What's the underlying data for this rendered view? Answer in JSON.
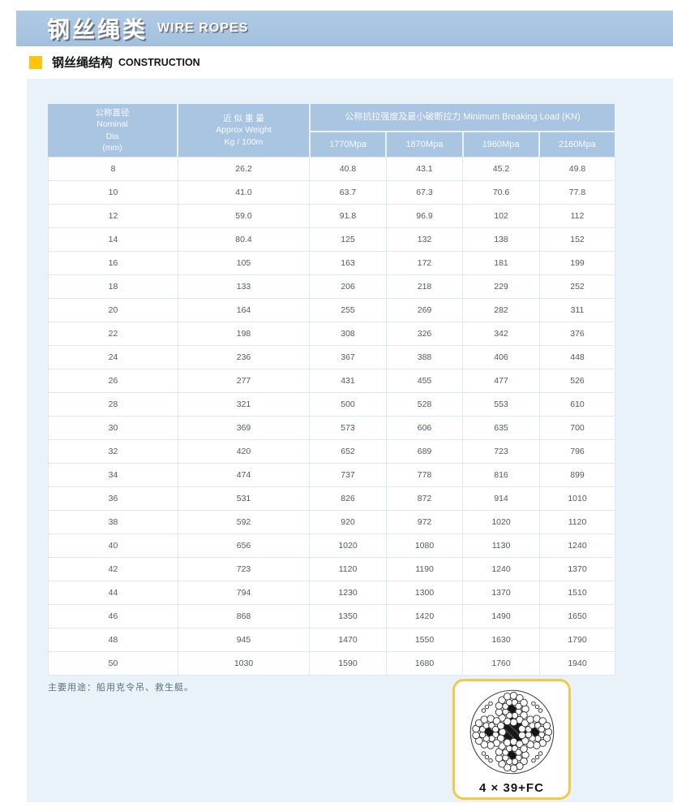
{
  "banner": {
    "title_cn": "钢丝绳类",
    "title_en": "WIRE ROPES"
  },
  "section": {
    "title_cn": "钢丝绳结构",
    "title_en": "CONSTRUCTION"
  },
  "table": {
    "header": {
      "dia_lines": [
        "公称直径",
        "Nominal",
        "Dia",
        "(mm)"
      ],
      "weight_lines": [
        "近 似 重 量",
        "Approx Weight",
        "Kg / 100m"
      ],
      "breaking_load_span": "公称抗拉强度及最小破断拉力 Minimum Breaking Load (KN)",
      "grade_columns": [
        "1770Mpa",
        "1870Mpa",
        "1960Mpa",
        "2160Mpa"
      ]
    },
    "rows": [
      {
        "dia": "8",
        "weight": "26.2",
        "loads": [
          "40.8",
          "43.1",
          "45.2",
          "49.8"
        ]
      },
      {
        "dia": "10",
        "weight": "41.0",
        "loads": [
          "63.7",
          "67.3",
          "70.6",
          "77.8"
        ]
      },
      {
        "dia": "12",
        "weight": "59.0",
        "loads": [
          "91.8",
          "96.9",
          "102",
          "112"
        ]
      },
      {
        "dia": "14",
        "weight": "80.4",
        "loads": [
          "125",
          "132",
          "138",
          "152"
        ]
      },
      {
        "dia": "16",
        "weight": "105",
        "loads": [
          "163",
          "172",
          "181",
          "199"
        ]
      },
      {
        "dia": "18",
        "weight": "133",
        "loads": [
          "206",
          "218",
          "229",
          "252"
        ]
      },
      {
        "dia": "20",
        "weight": "164",
        "loads": [
          "255",
          "269",
          "282",
          "311"
        ]
      },
      {
        "dia": "22",
        "weight": "198",
        "loads": [
          "308",
          "326",
          "342",
          "376"
        ]
      },
      {
        "dia": "24",
        "weight": "236",
        "loads": [
          "367",
          "388",
          "406",
          "448"
        ]
      },
      {
        "dia": "26",
        "weight": "277",
        "loads": [
          "431",
          "455",
          "477",
          "526"
        ]
      },
      {
        "dia": "28",
        "weight": "321",
        "loads": [
          "500",
          "528",
          "553",
          "610"
        ]
      },
      {
        "dia": "30",
        "weight": "369",
        "loads": [
          "573",
          "606",
          "635",
          "700"
        ]
      },
      {
        "dia": "32",
        "weight": "420",
        "loads": [
          "652",
          "689",
          "723",
          "796"
        ]
      },
      {
        "dia": "34",
        "weight": "474",
        "loads": [
          "737",
          "778",
          "816",
          "899"
        ]
      },
      {
        "dia": "36",
        "weight": "531",
        "loads": [
          "826",
          "872",
          "914",
          "1010"
        ]
      },
      {
        "dia": "38",
        "weight": "592",
        "loads": [
          "920",
          "972",
          "1020",
          "1120"
        ]
      },
      {
        "dia": "40",
        "weight": "656",
        "loads": [
          "1020",
          "1080",
          "1130",
          "1240"
        ]
      },
      {
        "dia": "42",
        "weight": "723",
        "loads": [
          "1120",
          "1190",
          "1240",
          "1370"
        ]
      },
      {
        "dia": "44",
        "weight": "794",
        "loads": [
          "1230",
          "1300",
          "1370",
          "1510"
        ]
      },
      {
        "dia": "46",
        "weight": "868",
        "loads": [
          "1350",
          "1420",
          "1490",
          "1650"
        ]
      },
      {
        "dia": "48",
        "weight": "945",
        "loads": [
          "1470",
          "1550",
          "1630",
          "1790"
        ]
      },
      {
        "dia": "50",
        "weight": "1030",
        "loads": [
          "1590",
          "1680",
          "1760",
          "1940"
        ]
      }
    ]
  },
  "note": "主要用途：船用克令吊、救生艇。",
  "figure": {
    "caption": "4 × 39+FC"
  },
  "colors": {
    "banner_bg": "#a7c3e0",
    "table_header_bg": "#a9c5e2",
    "panel_bg": "#e9f1f9",
    "accent_yellow": "#ffc40c",
    "card_border": "#f2c94c",
    "body_border": "#dce8f4"
  }
}
